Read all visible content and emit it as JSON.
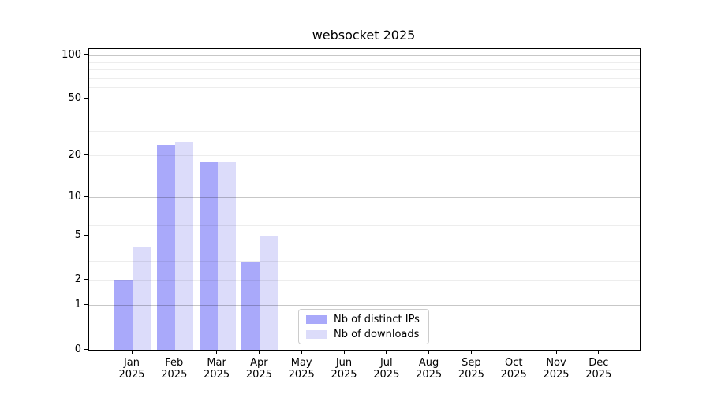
{
  "title": "websocket 2025",
  "chart_data": {
    "type": "bar",
    "title": "websocket 2025",
    "categories": [
      "Jan 2025",
      "Feb 2025",
      "Mar 2025",
      "Apr 2025",
      "May 2025",
      "Jun 2025",
      "Jul 2025",
      "Aug 2025",
      "Sep 2025",
      "Oct 2025",
      "Nov 2025",
      "Dec 2025"
    ],
    "x_labels": [
      [
        "Jan",
        "2025"
      ],
      [
        "Feb",
        "2025"
      ],
      [
        "Mar",
        "2025"
      ],
      [
        "Apr",
        "2025"
      ],
      [
        "May",
        "2025"
      ],
      [
        "Jun",
        "2025"
      ],
      [
        "Jul",
        "2025"
      ],
      [
        "Aug",
        "2025"
      ],
      [
        "Sep",
        "2025"
      ],
      [
        "Oct",
        "2025"
      ],
      [
        "Nov",
        "2025"
      ],
      [
        "Dec",
        "2025"
      ]
    ],
    "series": [
      {
        "name": "Nb of distinct IPs",
        "color": "#a9a9fa",
        "values": [
          2,
          24,
          18,
          3,
          0,
          0,
          0,
          0,
          0,
          0,
          0,
          0
        ]
      },
      {
        "name": "Nb of downloads",
        "color": "#dcdcfa",
        "values": [
          4,
          25,
          18,
          5,
          0,
          0,
          0,
          0,
          0,
          0,
          0,
          0
        ]
      }
    ],
    "yscale": "log1p",
    "ylim": [
      0,
      111
    ],
    "yticks": [
      0,
      1,
      2,
      5,
      10,
      20,
      50,
      100
    ],
    "major_gridlines": [
      1,
      10,
      100
    ],
    "minor_gridlines": [
      2,
      3,
      4,
      5,
      6,
      7,
      8,
      9,
      20,
      30,
      40,
      50,
      60,
      70,
      80,
      90
    ],
    "grid": true,
    "legend_position": "lower-center"
  }
}
